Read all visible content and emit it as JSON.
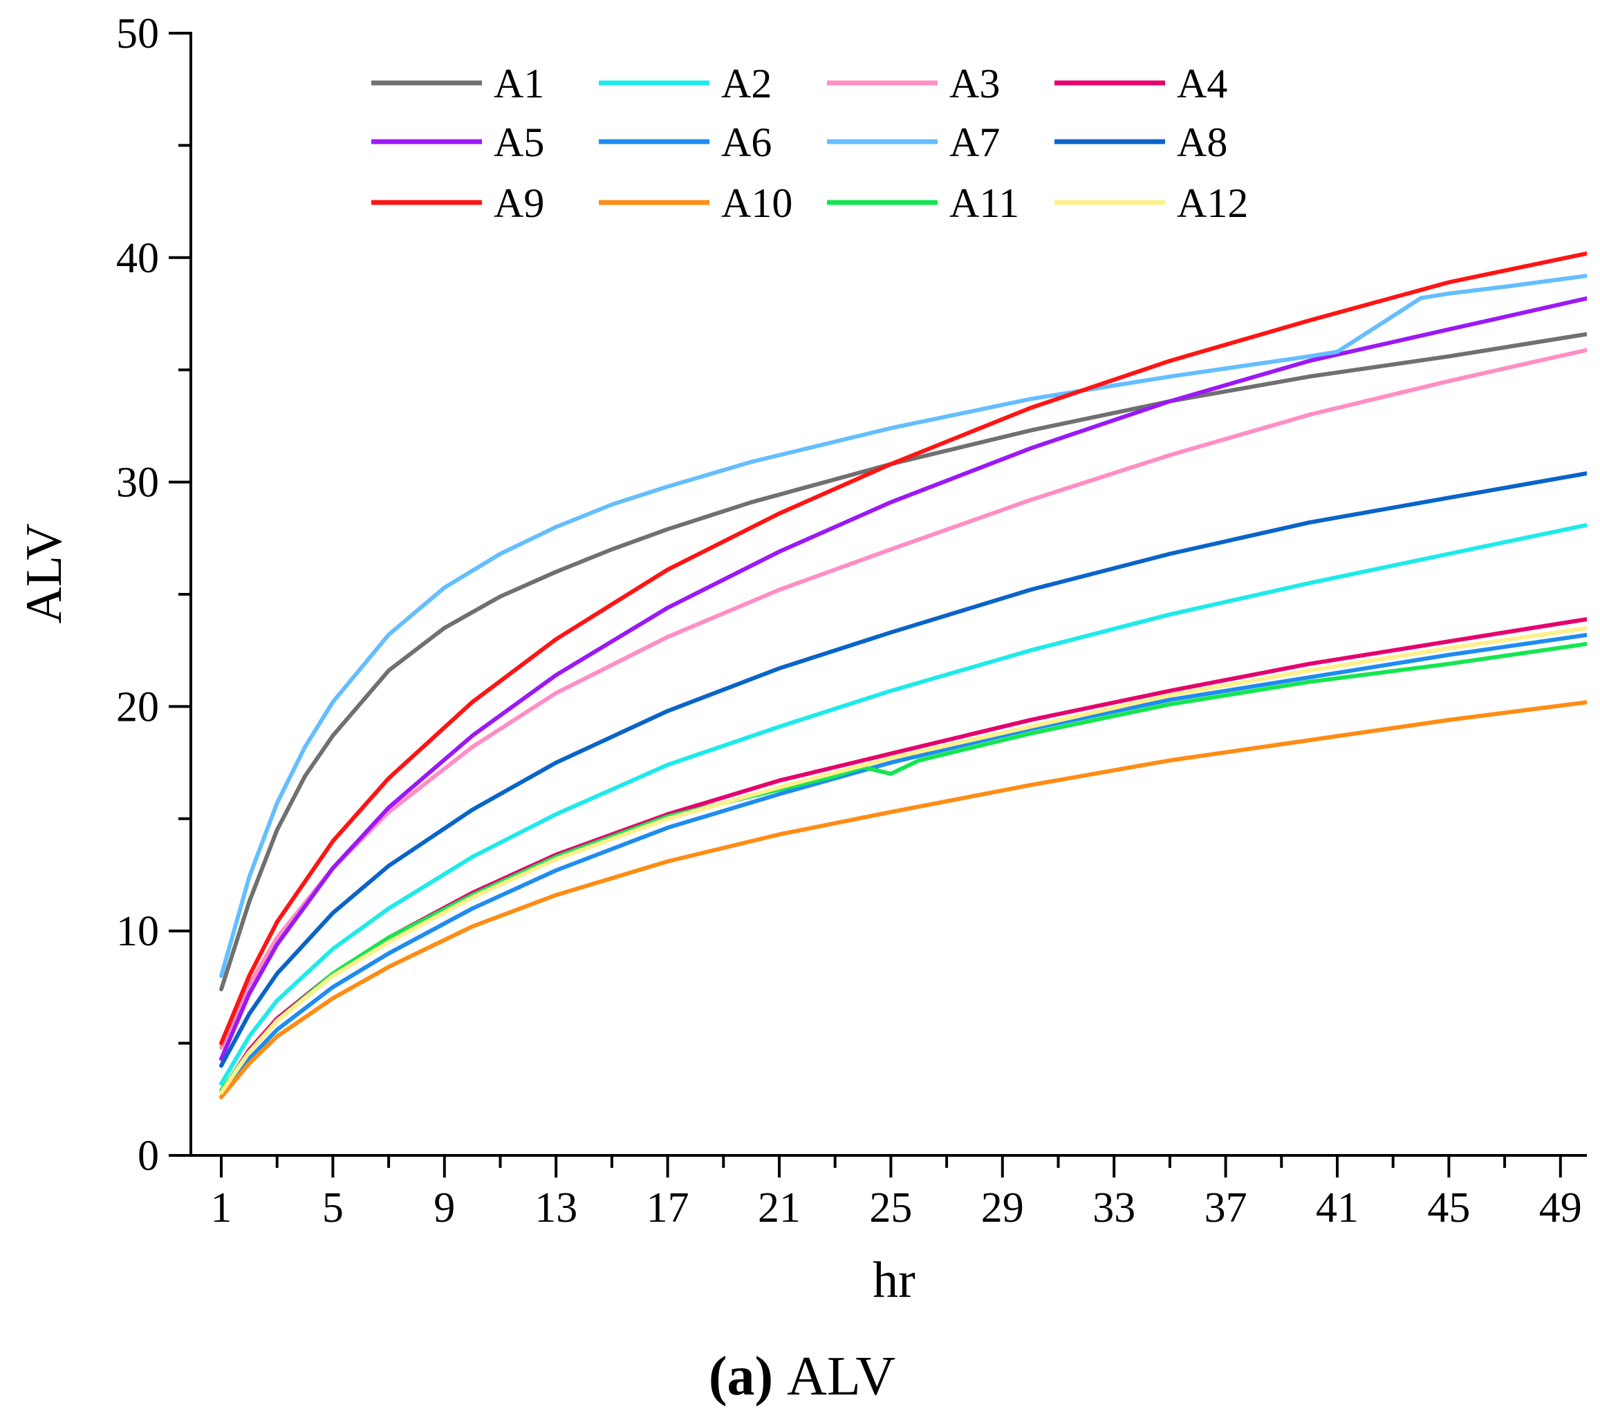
{
  "chart_data": {
    "type": "line",
    "title": "",
    "xlabel": "hr",
    "ylabel": "ALV",
    "xlim": [
      0,
      50
    ],
    "ylim": [
      0,
      50
    ],
    "x_ticks": [
      1,
      5,
      9,
      13,
      17,
      21,
      25,
      29,
      33,
      37,
      41,
      45,
      49
    ],
    "x_tick_labels": [
      "1",
      "5",
      "9",
      "13",
      "17",
      "21",
      "25",
      "29",
      "33",
      "37",
      "41",
      "45",
      "49"
    ],
    "y_ticks": [
      0,
      10,
      20,
      30,
      40,
      50
    ],
    "y_tick_labels": [
      "0",
      "10",
      "20",
      "30",
      "40",
      "50"
    ],
    "grid": false,
    "legend_position": "top-left",
    "caption": {
      "prefix": "(a)",
      "label": "ALV"
    },
    "series": [
      {
        "name": "A1",
        "color": "#707070",
        "x": [
          1,
          2,
          3,
          4,
          5,
          7,
          9,
          11,
          13,
          15,
          17,
          20,
          25,
          30,
          35,
          40,
          45,
          50
        ],
        "values": [
          7.4,
          11.3,
          14.5,
          16.9,
          18.7,
          21.6,
          23.5,
          24.9,
          26.0,
          27.0,
          27.9,
          29.1,
          30.8,
          32.3,
          33.6,
          34.7,
          35.6,
          36.6
        ]
      },
      {
        "name": "A2",
        "color": "#1EEAEA",
        "x": [
          1,
          2,
          3,
          5,
          7,
          10,
          13,
          17,
          21,
          25,
          30,
          35,
          40,
          45,
          50
        ],
        "values": [
          3.2,
          5.3,
          6.9,
          9.2,
          11.0,
          13.3,
          15.2,
          17.4,
          19.1,
          20.7,
          22.5,
          24.1,
          25.5,
          26.8,
          28.1
        ]
      },
      {
        "name": "A3",
        "color": "#FF8EC4",
        "x": [
          1,
          2,
          3,
          5,
          7,
          10,
          13,
          17,
          21,
          25,
          30,
          35,
          40,
          45,
          50
        ],
        "values": [
          4.8,
          7.6,
          9.7,
          12.8,
          15.3,
          18.2,
          20.6,
          23.1,
          25.2,
          27.0,
          29.2,
          31.2,
          33.0,
          34.5,
          35.9
        ]
      },
      {
        "name": "A4",
        "color": "#E5006E",
        "x": [
          1,
          2,
          3,
          5,
          7,
          10,
          13,
          17,
          21,
          25,
          30,
          35,
          40,
          45,
          50
        ],
        "values": [
          2.8,
          4.7,
          6.1,
          8.1,
          9.7,
          11.7,
          13.4,
          15.2,
          16.7,
          17.9,
          19.4,
          20.7,
          21.9,
          22.9,
          23.9
        ]
      },
      {
        "name": "A5",
        "color": "#9B19F5",
        "x": [
          1,
          2,
          3,
          5,
          7,
          10,
          13,
          17,
          21,
          25,
          30,
          35,
          40,
          45,
          50
        ],
        "values": [
          4.3,
          7.2,
          9.4,
          12.8,
          15.5,
          18.7,
          21.4,
          24.4,
          26.9,
          29.1,
          31.5,
          33.6,
          35.4,
          36.8,
          38.2
        ]
      },
      {
        "name": "A6",
        "color": "#1E8CF0",
        "x": [
          1,
          2,
          3,
          5,
          7,
          10,
          13,
          17,
          21,
          25,
          30,
          35,
          40,
          45,
          50
        ],
        "values": [
          2.6,
          4.3,
          5.6,
          7.5,
          9.0,
          11.0,
          12.7,
          14.6,
          16.1,
          17.5,
          19.0,
          20.3,
          21.3,
          22.3,
          23.2
        ]
      },
      {
        "name": "A7",
        "color": "#64BEFF",
        "x": [
          1,
          2,
          3,
          4,
          5,
          7,
          9,
          11,
          13,
          15,
          17,
          20,
          25,
          30,
          35,
          40,
          41,
          44,
          45,
          47,
          50
        ],
        "values": [
          8.0,
          12.4,
          15.7,
          18.2,
          20.2,
          23.2,
          25.3,
          26.8,
          28.0,
          29.0,
          29.8,
          30.9,
          32.4,
          33.7,
          34.7,
          35.6,
          35.8,
          38.2,
          38.4,
          38.7,
          39.2
        ]
      },
      {
        "name": "A8",
        "color": "#0A64C8",
        "x": [
          1,
          2,
          3,
          5,
          7,
          10,
          13,
          17,
          21,
          25,
          30,
          35,
          40,
          45,
          50
        ],
        "values": [
          4.0,
          6.3,
          8.1,
          10.8,
          12.9,
          15.4,
          17.5,
          19.8,
          21.7,
          23.3,
          25.2,
          26.8,
          28.2,
          29.3,
          30.4
        ]
      },
      {
        "name": "A9",
        "color": "#FF1414",
        "x": [
          1,
          2,
          3,
          5,
          7,
          10,
          13,
          17,
          21,
          25,
          30,
          35,
          40,
          45,
          50
        ],
        "values": [
          5.0,
          8.0,
          10.4,
          14.0,
          16.8,
          20.2,
          23.0,
          26.1,
          28.6,
          30.8,
          33.3,
          35.4,
          37.2,
          38.9,
          40.2
        ]
      },
      {
        "name": "A10",
        "color": "#FF8C14",
        "x": [
          1,
          2,
          3,
          5,
          7,
          10,
          13,
          17,
          21,
          25,
          30,
          35,
          40,
          45,
          50
        ],
        "values": [
          2.6,
          4.1,
          5.3,
          7.0,
          8.4,
          10.2,
          11.6,
          13.1,
          14.3,
          15.3,
          16.5,
          17.6,
          18.5,
          19.4,
          20.2
        ]
      },
      {
        "name": "A11",
        "color": "#14E650",
        "x": [
          1,
          2,
          3,
          5,
          7,
          10,
          13,
          17,
          21,
          23,
          24,
          25,
          26,
          30,
          35,
          40,
          45,
          50
        ],
        "values": [
          2.9,
          4.6,
          6.0,
          8.1,
          9.7,
          11.6,
          13.3,
          15.1,
          16.3,
          16.9,
          17.3,
          17.0,
          17.6,
          18.8,
          20.1,
          21.1,
          21.9,
          22.8
        ]
      },
      {
        "name": "A12",
        "color": "#FFF08C",
        "x": [
          1,
          2,
          3,
          5,
          7,
          10,
          13,
          17,
          21,
          25,
          30,
          35,
          40,
          45,
          50
        ],
        "values": [
          2.8,
          4.6,
          6.0,
          8.0,
          9.5,
          11.5,
          13.2,
          15.0,
          16.4,
          17.7,
          19.1,
          20.5,
          21.6,
          22.6,
          23.5
        ]
      }
    ]
  }
}
